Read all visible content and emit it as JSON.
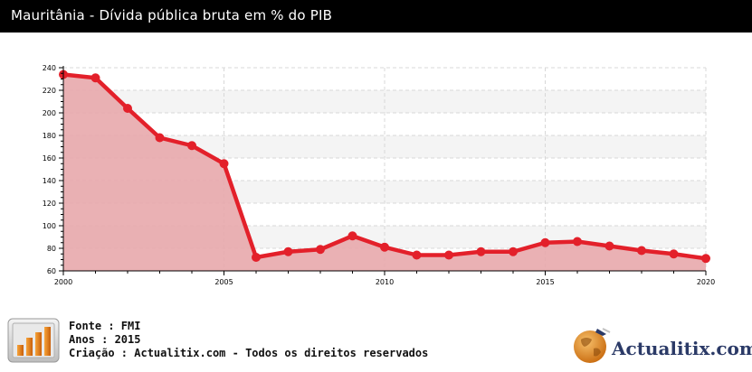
{
  "header": {
    "title": "Mauritânia - Dívida pública bruta em % do PIB"
  },
  "footer": {
    "source_line": "Fonte : FMI",
    "years_line": "Anos : 2015",
    "credit_line": "Criação : Actualitix.com - Todos os direitos reservados",
    "brand": "Actualitix.com"
  },
  "colors": {
    "line": "#e3202a",
    "fill": "#e8a9ac",
    "header_bg": "#000000"
  },
  "chart_data": {
    "type": "area",
    "title": "",
    "xlabel": "",
    "ylabel": "",
    "x": [
      2000,
      2001,
      2002,
      2003,
      2004,
      2005,
      2006,
      2007,
      2008,
      2009,
      2010,
      2011,
      2012,
      2013,
      2014,
      2015,
      2016,
      2017,
      2018,
      2019,
      2020
    ],
    "values": [
      234,
      231,
      204,
      178,
      171,
      155,
      72,
      77,
      79,
      91,
      81,
      74,
      74,
      77,
      77,
      85,
      86,
      82,
      78,
      75,
      71
    ],
    "xlim": [
      2000,
      2020
    ],
    "ylim": [
      60,
      240
    ],
    "yticks": [
      60,
      80,
      100,
      120,
      140,
      160,
      180,
      200,
      220,
      240
    ],
    "xticks": [
      2000,
      2005,
      2010,
      2015,
      2020
    ],
    "grid": true,
    "legend": "none"
  }
}
